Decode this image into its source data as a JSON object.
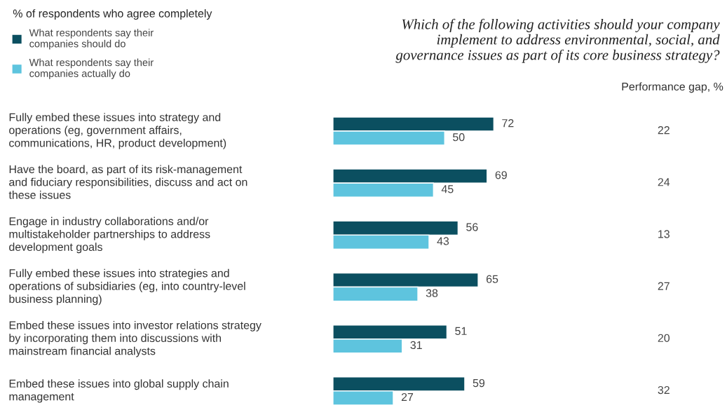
{
  "chart_data": {
    "type": "bar",
    "orientation": "horizontal",
    "title": "Which of the following activities should your company\nimplement to address environmental, social, and\ngovernance issues as part of its core business strategy?",
    "legend_title": "% of respondents who agree completely",
    "categories": [
      "Fully embed these issues into strategy and\noperations (eg, government affairs,\ncommunications, HR, product development)",
      "Have the board, as part of its risk-management\nand fiduciary responsibilities, discuss and act on\nthese issues",
      "Engage in industry collaborations and/or\nmultistakeholder partnerships to address\ndevelopment goals",
      "Fully embed these issues into strategies and\noperations of subsidiaries (eg, into country-level\nbusiness planning)",
      "Embed these issues into investor relations strategy\nby incorporating them into discussions with\nmainstream financial analysts",
      "Embed these issues into global supply chain\nmanagement"
    ],
    "series": [
      {
        "name": "What respondents say their\ncompanies should do",
        "color": "#0b4f60",
        "values": [
          72,
          69,
          56,
          65,
          51,
          59
        ]
      },
      {
        "name": "What respondents say their\ncompanies actually do",
        "color": "#5ec4de",
        "values": [
          50,
          45,
          43,
          38,
          31,
          27
        ]
      }
    ],
    "data_labels": true,
    "legend": "top left",
    "annotations": [
      "Performance gap, %",
      "22",
      "24",
      "13",
      "27",
      "20",
      "32"
    ]
  }
}
